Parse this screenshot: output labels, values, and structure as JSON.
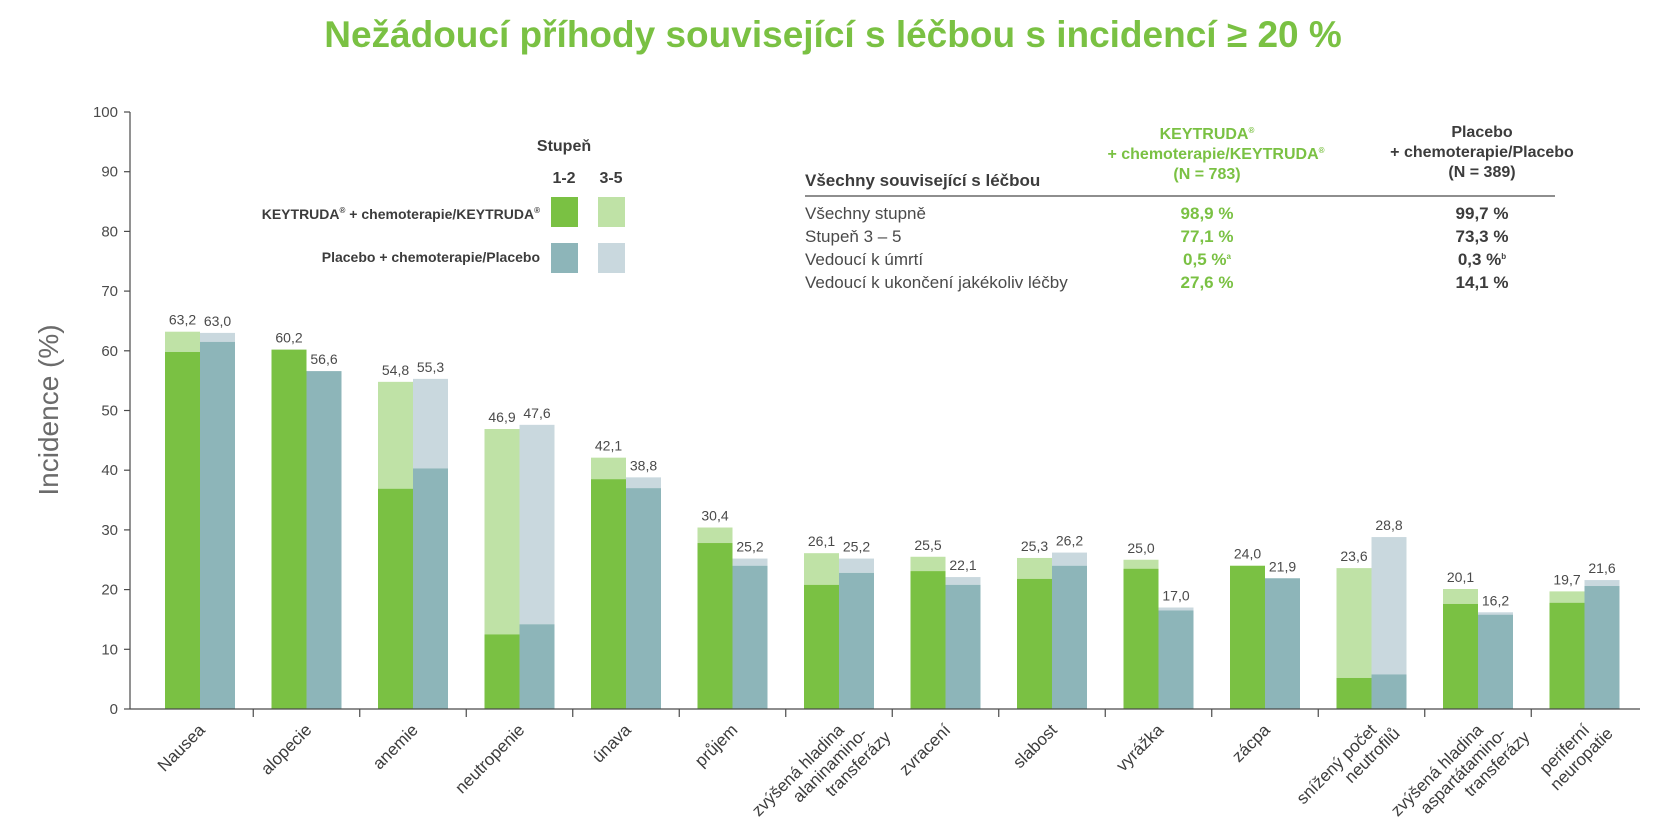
{
  "title": "Nežádoucí příhody související s léčbou s incidencí ≥ 20 %",
  "colors": {
    "title": "#7ac143",
    "keytruda_grade12": "#7ac143",
    "keytruda_grade35": "#bfe2a6",
    "placebo_grade12": "#8db5b9",
    "placebo_grade35": "#c9d8de",
    "axis": "#4a4a4a"
  },
  "legend": {
    "header": "Stupeň",
    "grade_12": "1-2",
    "grade_35": "3-5",
    "keytruda_name": "KEYTRUDA",
    "keytruda_suffix": " + chemoterapie/KEYTRUDA",
    "registered": "®",
    "placebo_name": "Placebo + chemoterapie/Placebo"
  },
  "table": {
    "row_header": "Všechny související s léčbou",
    "col_keytruda": {
      "line1": "KEYTRUDA",
      "reg": "®",
      "line2": "+ chemoterapie/KEYTRUDA",
      "line3": "(N = 783)"
    },
    "col_placebo": {
      "line1": "Placebo",
      "line2": "+ chemoterapie/Placebo",
      "line3": "(N = 389)"
    },
    "rows": [
      {
        "label": "Všechny stupně",
        "keytruda": "98,9 %",
        "keytruda_sup": "",
        "placebo": "99,7 %",
        "placebo_sup": ""
      },
      {
        "label": "Stupeň 3 – 5",
        "keytruda": "77,1 %",
        "keytruda_sup": "",
        "placebo": "73,3 %",
        "placebo_sup": ""
      },
      {
        "label": "Vedoucí k úmrtí",
        "keytruda": "0,5 %",
        "keytruda_sup": "a",
        "placebo": "0,3 %",
        "placebo_sup": "b"
      },
      {
        "label": "Vedoucí k ukončení jakékoliv léčby",
        "keytruda": "27,6 %",
        "keytruda_sup": "",
        "placebo": "14,1 %",
        "placebo_sup": ""
      }
    ]
  },
  "chart_data": {
    "type": "bar",
    "stacked": true,
    "grouped": true,
    "title": "Nežádoucí příhody související s léčbou s incidencí ≥ 20 %",
    "ylabel": "Incidence (%)",
    "ylim": [
      0,
      100
    ],
    "yticks": [
      0,
      10,
      20,
      30,
      40,
      50,
      60,
      70,
      80,
      90,
      100
    ],
    "categories": [
      [
        "Nausea"
      ],
      [
        "alopecie"
      ],
      [
        "anemie"
      ],
      [
        "neutropenie"
      ],
      [
        "únava"
      ],
      [
        "průjem"
      ],
      [
        "zvýšená hladina",
        "alaninamino-",
        "transferázy"
      ],
      [
        "zvracení"
      ],
      [
        "slabost"
      ],
      [
        "vyrážka"
      ],
      [
        "zácpa"
      ],
      [
        "snížený počet",
        "neutrofilů"
      ],
      [
        "zvýšená hladina",
        "aspartátamino-",
        "transferázy"
      ],
      [
        "periferní",
        "neuropatie"
      ]
    ],
    "series": [
      {
        "name": "KEYTRUDA® + chemoterapie/KEYTRUDA®",
        "totals": [
          63.2,
          60.2,
          54.8,
          46.9,
          42.1,
          30.4,
          26.1,
          25.5,
          25.3,
          25.0,
          24.0,
          23.6,
          20.1,
          19.7
        ],
        "total_labels": [
          "63,2",
          "60,2",
          "54,8",
          "46,9",
          "42,1",
          "30,4",
          "26,1",
          "25,5",
          "25,3",
          "25,0",
          "24,0",
          "23,6",
          "20,1",
          "19,7"
        ],
        "grade_1_2": [
          59.8,
          60.2,
          36.9,
          12.5,
          38.5,
          27.8,
          20.8,
          23.1,
          21.8,
          23.5,
          24.0,
          5.2,
          17.6,
          17.8
        ]
      },
      {
        "name": "Placebo + chemoterapie/Placebo",
        "totals": [
          63.0,
          56.6,
          55.3,
          47.6,
          38.8,
          25.2,
          25.2,
          22.1,
          26.2,
          17.0,
          21.9,
          28.8,
          16.2,
          21.6
        ],
        "total_labels": [
          "63,0",
          "56,6",
          "55,3",
          "47,6",
          "38,8",
          "25,2",
          "25,2",
          "22,1",
          "26,2",
          "17,0",
          "21,9",
          "28,8",
          "16,2",
          "21,6"
        ],
        "grade_1_2": [
          61.5,
          56.6,
          40.3,
          14.2,
          37.0,
          24.0,
          22.8,
          20.8,
          24.0,
          16.5,
          21.9,
          5.8,
          15.8,
          20.6
        ]
      }
    ]
  }
}
